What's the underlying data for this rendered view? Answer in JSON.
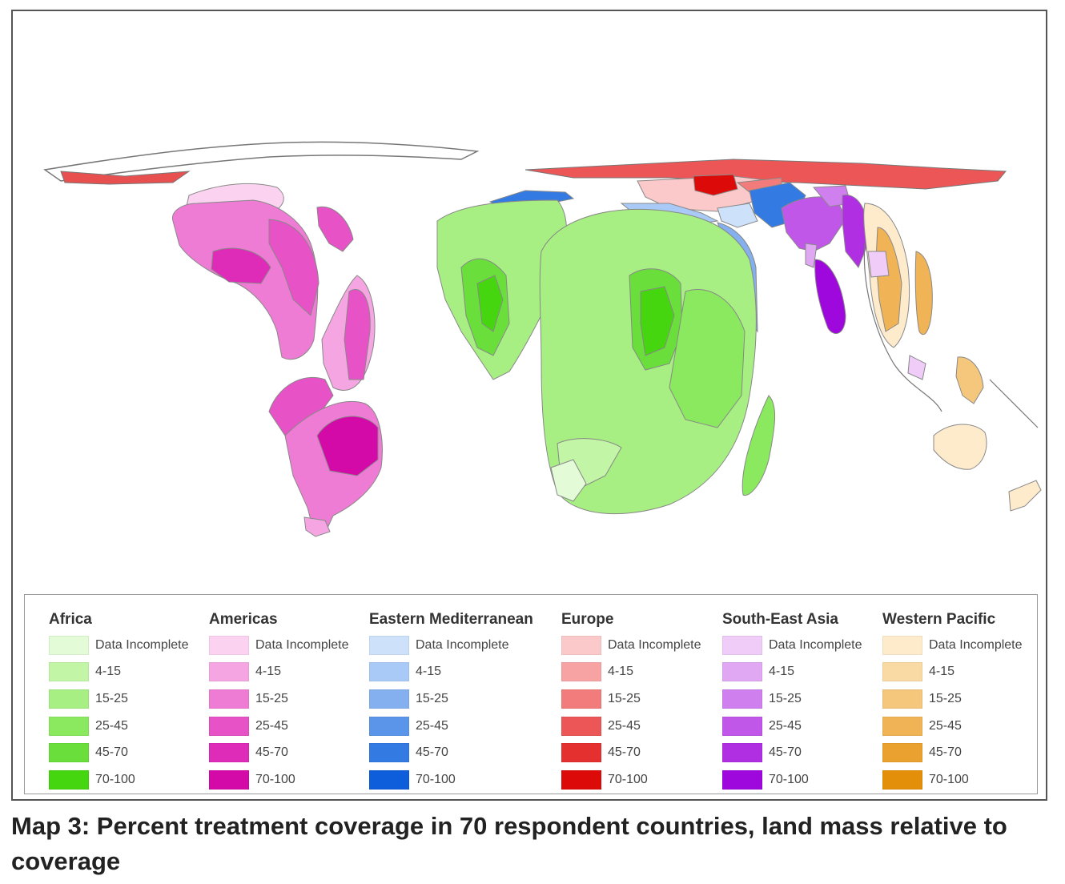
{
  "caption": "Map 3: Percent treatment coverage in 70 respondent countries, land mass relative to coverage",
  "legend": {
    "columns": [
      {
        "title": "Africa",
        "items": [
          {
            "label": "Data Incomplete",
            "color": "#e3fbd6"
          },
          {
            "label": "4-15",
            "color": "#c2f5a6"
          },
          {
            "label": "15-25",
            "color": "#a7ef82"
          },
          {
            "label": "25-45",
            "color": "#8ae95f"
          },
          {
            "label": "45-70",
            "color": "#6adf3c"
          },
          {
            "label": "70-100",
            "color": "#46d60f"
          }
        ]
      },
      {
        "title": "Americas",
        "items": [
          {
            "label": "Data Incomplete",
            "color": "#fbd3f1"
          },
          {
            "label": "4-15",
            "color": "#f5a6e2"
          },
          {
            "label": "15-25",
            "color": "#ee7cd4"
          },
          {
            "label": "25-45",
            "color": "#e752c6"
          },
          {
            "label": "45-70",
            "color": "#df2cb8"
          },
          {
            "label": "70-100",
            "color": "#d40aa8"
          }
        ]
      },
      {
        "title": "Eastern Mediterranean",
        "items": [
          {
            "label": "Data Incomplete",
            "color": "#cde1fb"
          },
          {
            "label": "4-15",
            "color": "#a9c9f6"
          },
          {
            "label": "15-25",
            "color": "#84b0f0"
          },
          {
            "label": "25-45",
            "color": "#5b95ea"
          },
          {
            "label": "45-70",
            "color": "#337ae3"
          },
          {
            "label": "70-100",
            "color": "#0e5ddb"
          }
        ]
      },
      {
        "title": "Europe",
        "items": [
          {
            "label": "Data Incomplete",
            "color": "#fbc9c9"
          },
          {
            "label": "4-15",
            "color": "#f7a3a3"
          },
          {
            "label": "15-25",
            "color": "#f27c7c"
          },
          {
            "label": "25-45",
            "color": "#ec5656"
          },
          {
            "label": "45-70",
            "color": "#e53030"
          },
          {
            "label": "70-100",
            "color": "#dd0a0a"
          }
        ]
      },
      {
        "title": "South-East Asia",
        "items": [
          {
            "label": "Data Incomplete",
            "color": "#efcdf8"
          },
          {
            "label": "4-15",
            "color": "#e0a7f3"
          },
          {
            "label": "15-25",
            "color": "#d07fee"
          },
          {
            "label": "25-45",
            "color": "#c157e9"
          },
          {
            "label": "45-70",
            "color": "#b02fe3"
          },
          {
            "label": "70-100",
            "color": "#9e08dd"
          }
        ]
      },
      {
        "title": "Western Pacific",
        "items": [
          {
            "label": "Data Incomplete",
            "color": "#fdebcc"
          },
          {
            "label": "4-15",
            "color": "#f9d9a4"
          },
          {
            "label": "15-25",
            "color": "#f5c77d"
          },
          {
            "label": "25-45",
            "color": "#f0b456"
          },
          {
            "label": "45-70",
            "color": "#eba130"
          },
          {
            "label": "70-100",
            "color": "#e48f0a"
          }
        ]
      }
    ]
  }
}
